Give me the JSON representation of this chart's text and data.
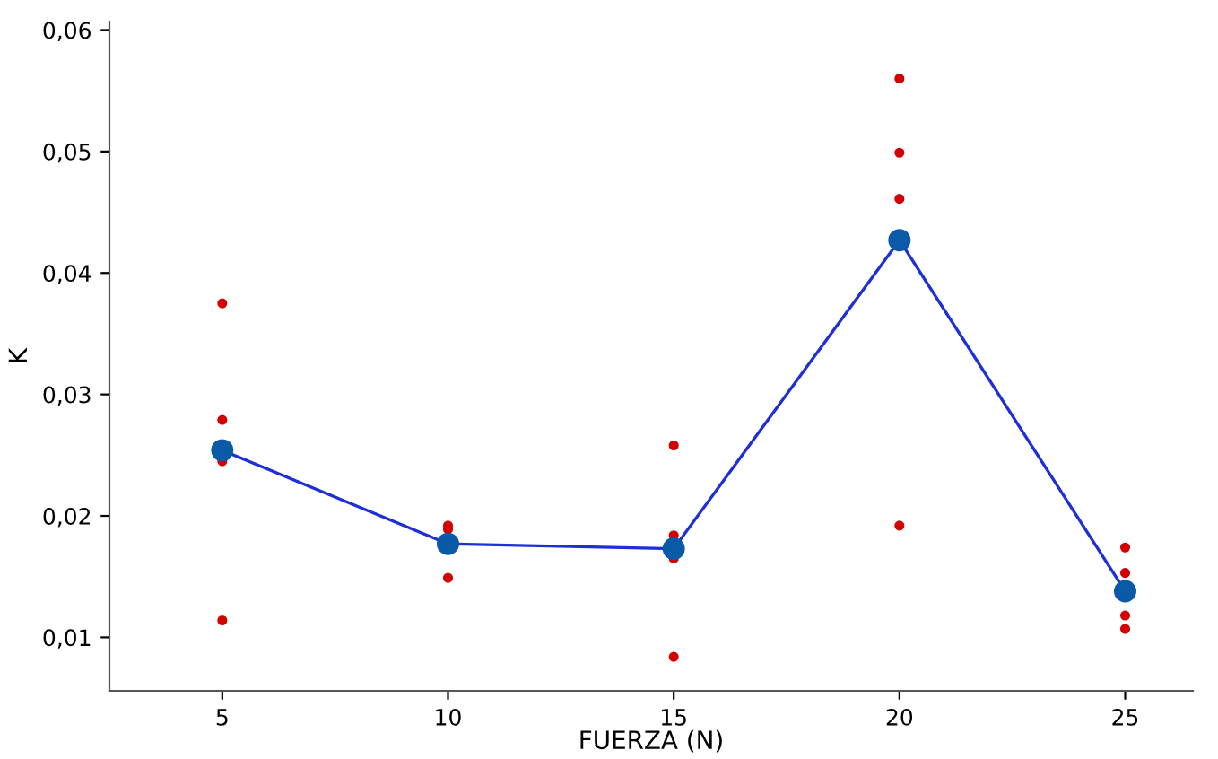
{
  "chart_data": {
    "type": "line",
    "xlabel": "FUERZA (N)",
    "ylabel": "K",
    "x": [
      5,
      10,
      15,
      20,
      25
    ],
    "series": [
      {
        "type": "scatter",
        "color": "#d40000",
        "marker": "circle",
        "x": [
          5,
          5,
          5,
          5,
          10,
          10,
          10,
          15,
          15,
          15,
          15,
          20,
          20,
          20,
          20,
          25,
          25,
          25,
          25
        ],
        "values": [
          0.0375,
          0.0279,
          0.0245,
          0.0114,
          0.0192,
          0.0189,
          0.0149,
          0.0258,
          0.0184,
          0.0165,
          0.0084,
          0.056,
          0.0499,
          0.0461,
          0.0192,
          0.0174,
          0.0153,
          0.0118,
          0.0107
        ]
      },
      {
        "color": "#1f2fd8",
        "marker": "circle",
        "line_style": "solid",
        "values": [
          0.0254,
          0.0177,
          0.0173,
          0.0427,
          0.0138
        ]
      }
    ],
    "xlim": [
      2.5,
      26.5
    ],
    "xticks": [
      5,
      10,
      15,
      20,
      25
    ],
    "ylim": [
      0.0056,
      0.0607
    ],
    "yticks": [
      {
        "value": 0.01,
        "label": "0,01"
      },
      {
        "value": 0.02,
        "label": "0,02"
      },
      {
        "value": 0.03,
        "label": "0,03"
      },
      {
        "value": 0.04,
        "label": "0,04"
      },
      {
        "value": 0.05,
        "label": "0,05"
      },
      {
        "value": 0.06,
        "label": "0,06"
      }
    ],
    "grid": false,
    "legend": false
  }
}
